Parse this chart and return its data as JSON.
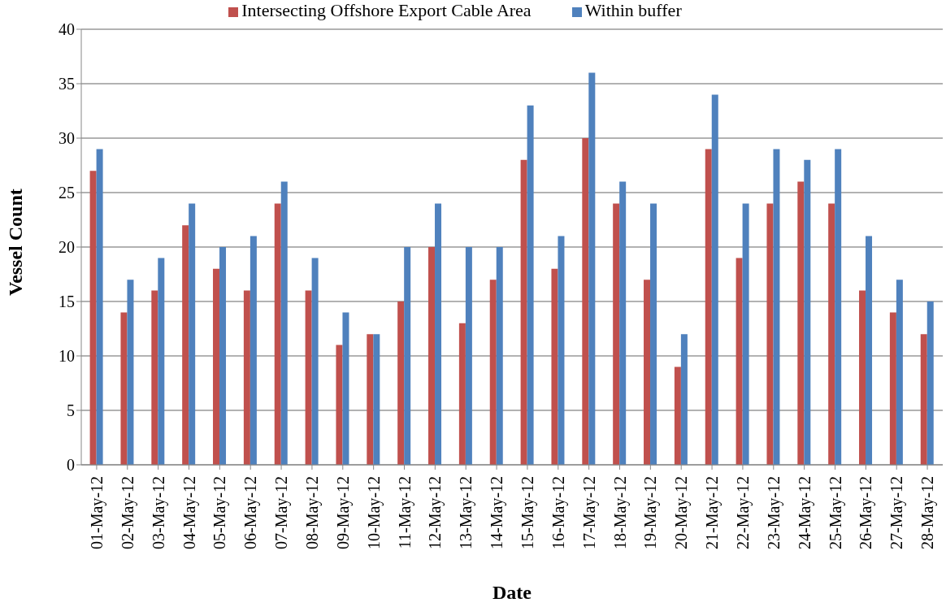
{
  "chart_data": {
    "type": "bar",
    "xlabel": "Date",
    "ylabel": "Vessel Count",
    "categories": [
      "01-May-12",
      "02-May-12",
      "03-May-12",
      "04-May-12",
      "05-May-12",
      "06-May-12",
      "07-May-12",
      "08-May-12",
      "09-May-12",
      "10-May-12",
      "11-May-12",
      "12-May-12",
      "13-May-12",
      "14-May-12",
      "15-May-12",
      "16-May-12",
      "17-May-12",
      "18-May-12",
      "19-May-12",
      "20-May-12",
      "21-May-12",
      "22-May-12",
      "23-May-12",
      "24-May-12",
      "25-May-12",
      "26-May-12",
      "27-May-12",
      "28-May-12"
    ],
    "series": [
      {
        "name": "Intersecting Offshore Export Cable Area",
        "color": "#c0504d",
        "values": [
          27,
          14,
          16,
          22,
          18,
          16,
          24,
          16,
          11,
          12,
          15,
          20,
          13,
          17,
          28,
          18,
          30,
          24,
          17,
          9,
          29,
          19,
          24,
          26,
          24,
          16,
          14,
          12
        ]
      },
      {
        "name": "Within buffer",
        "color": "#4f81bd",
        "values": [
          29,
          17,
          19,
          24,
          20,
          21,
          26,
          19,
          14,
          12,
          20,
          24,
          20,
          20,
          33,
          21,
          36,
          26,
          24,
          12,
          34,
          24,
          29,
          28,
          29,
          21,
          17,
          15
        ]
      }
    ],
    "ylim": [
      0,
      40
    ],
    "yticks": [
      0,
      5,
      10,
      15,
      20,
      25,
      30,
      35,
      40
    ],
    "grid": "y",
    "legend": "top"
  }
}
